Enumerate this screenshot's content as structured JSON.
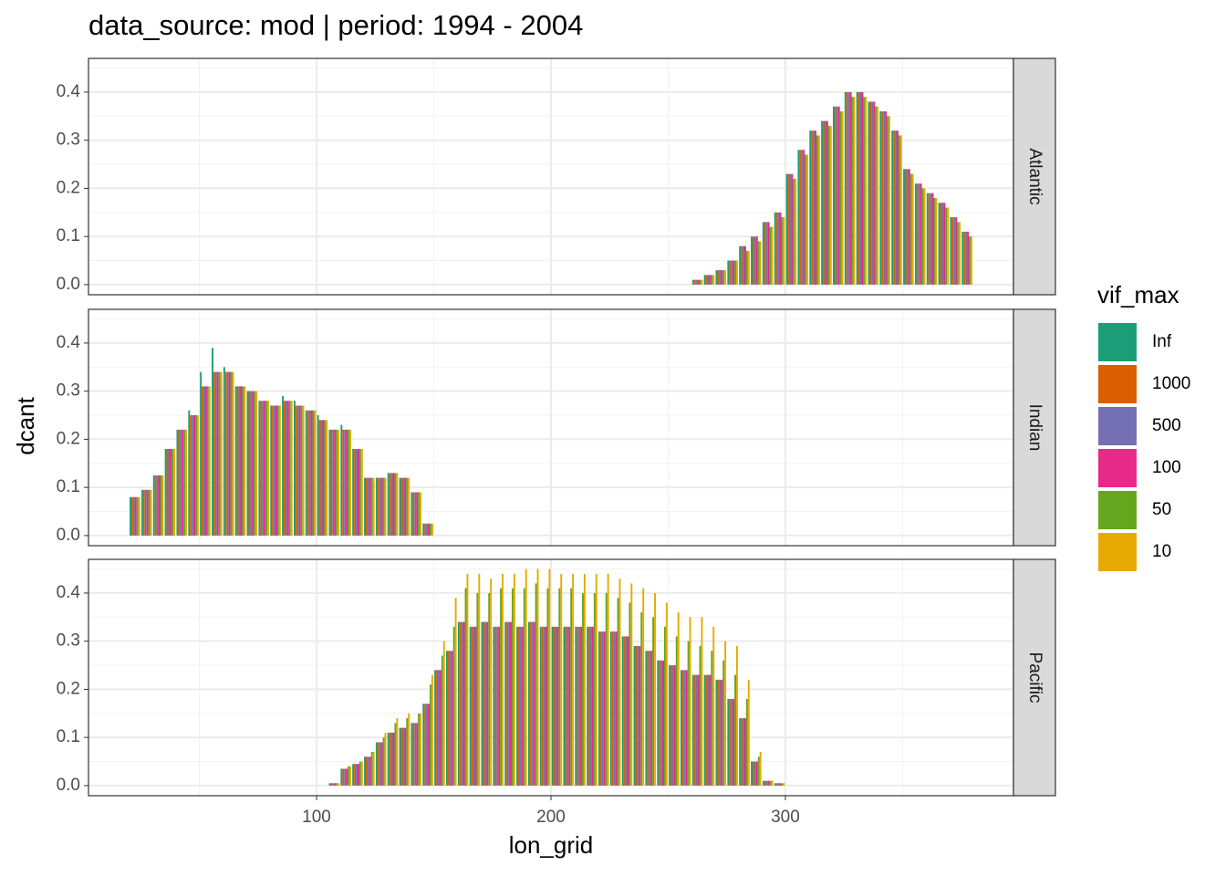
{
  "chart_data": [
    {
      "type": "bar",
      "title": "data_source: mod | period: 1994 - 2004",
      "y_label": "dcant",
      "legend_title": "vif_max",
      "facet": "Atlantic",
      "xlim": [
        2.7,
        397.3
      ],
      "xticks": [
        100,
        200,
        300
      ],
      "ylim": [
        -0.021,
        0.47
      ],
      "yticks": [
        {
          "value": 0,
          "label": "0.0"
        },
        0.1,
        0.2,
        0.3,
        0.4
      ],
      "grid": true,
      "x": [
        262.5,
        267.5,
        272.5,
        277.5,
        282.5,
        287.5,
        292.5,
        297.5,
        302.5,
        307.5,
        312.5,
        317.5,
        322.5,
        327.5,
        332.5,
        337.5,
        342.5,
        347.5,
        352.5,
        357.5,
        362.5,
        367.5,
        372.5,
        377.5
      ],
      "series": [
        {
          "name": "Inf",
          "color": "#1b9e77",
          "values": [
            0.01,
            0.02,
            0.03,
            0.05,
            0.08,
            0.1,
            0.13,
            0.15,
            0.23,
            0.28,
            0.32,
            0.34,
            0.37,
            0.4,
            0.4,
            0.38,
            0.36,
            0.32,
            0.24,
            0.21,
            0.19,
            0.17,
            0.14,
            0.11
          ]
        },
        {
          "name": "1000",
          "color": "#d95f02",
          "values": [
            0.01,
            0.02,
            0.03,
            0.05,
            0.08,
            0.1,
            0.13,
            0.15,
            0.23,
            0.28,
            0.32,
            0.34,
            0.37,
            0.4,
            0.4,
            0.38,
            0.36,
            0.32,
            0.24,
            0.21,
            0.19,
            0.17,
            0.14,
            0.11
          ]
        },
        {
          "name": "500",
          "color": "#7570b3",
          "values": [
            0.01,
            0.02,
            0.03,
            0.05,
            0.08,
            0.1,
            0.13,
            0.15,
            0.23,
            0.28,
            0.32,
            0.34,
            0.37,
            0.4,
            0.4,
            0.38,
            0.36,
            0.32,
            0.24,
            0.21,
            0.19,
            0.17,
            0.14,
            0.11
          ]
        },
        {
          "name": "100",
          "color": "#e7298a",
          "values": [
            0.01,
            0.02,
            0.03,
            0.05,
            0.08,
            0.1,
            0.13,
            0.15,
            0.23,
            0.28,
            0.32,
            0.34,
            0.37,
            0.4,
            0.4,
            0.38,
            0.36,
            0.32,
            0.24,
            0.21,
            0.19,
            0.17,
            0.14,
            0.11
          ]
        },
        {
          "name": "50",
          "color": "#66a61e",
          "values": [
            0.01,
            0.02,
            0.03,
            0.05,
            0.07,
            0.09,
            0.12,
            0.14,
            0.22,
            0.27,
            0.31,
            0.33,
            0.36,
            0.39,
            0.39,
            0.37,
            0.35,
            0.31,
            0.23,
            0.2,
            0.18,
            0.16,
            0.13,
            0.1
          ]
        },
        {
          "name": "10",
          "color": "#e6ab02",
          "values": [
            0.01,
            0.02,
            0.03,
            0.05,
            0.07,
            0.09,
            0.12,
            0.14,
            0.22,
            0.27,
            0.31,
            0.33,
            0.36,
            0.39,
            0.39,
            0.37,
            0.35,
            0.31,
            0.23,
            0.2,
            0.18,
            0.16,
            0.13,
            0.1
          ]
        }
      ]
    },
    {
      "type": "bar",
      "facet": "Indian",
      "xlim": [
        2.7,
        397.3
      ],
      "xticks": [
        100,
        200,
        300
      ],
      "ylim": [
        -0.021,
        0.47
      ],
      "yticks": [
        {
          "value": 0,
          "label": "0.0"
        },
        0.1,
        0.2,
        0.3,
        0.4
      ],
      "grid": true,
      "x": [
        22.5,
        27.5,
        32.5,
        37.5,
        42.5,
        47.5,
        52.5,
        57.5,
        62.5,
        67.5,
        72.5,
        77.5,
        82.5,
        87.5,
        92.5,
        97.5,
        102.5,
        107.5,
        112.5,
        117.5,
        122.5,
        127.5,
        132.5,
        137.5,
        142.5,
        147.5
      ],
      "series": [
        {
          "name": "Inf",
          "color": "#1b9e77",
          "values": [
            0.08,
            0.095,
            0.125,
            0.18,
            0.22,
            0.26,
            0.34,
            0.39,
            0.35,
            0.31,
            0.3,
            0.28,
            0.27,
            0.29,
            0.28,
            0.26,
            0.25,
            0.22,
            0.23,
            0.18,
            0.12,
            0.12,
            0.13,
            0.12,
            0.09,
            0.025
          ]
        },
        {
          "name": "1000",
          "color": "#d95f02",
          "values": [
            0.08,
            0.095,
            0.125,
            0.18,
            0.22,
            0.25,
            0.31,
            0.34,
            0.34,
            0.31,
            0.3,
            0.28,
            0.27,
            0.28,
            0.27,
            0.26,
            0.24,
            0.22,
            0.22,
            0.18,
            0.12,
            0.12,
            0.13,
            0.12,
            0.09,
            0.025
          ]
        },
        {
          "name": "500",
          "color": "#7570b3",
          "values": [
            0.08,
            0.095,
            0.125,
            0.18,
            0.22,
            0.25,
            0.31,
            0.34,
            0.34,
            0.31,
            0.3,
            0.28,
            0.27,
            0.28,
            0.27,
            0.26,
            0.24,
            0.22,
            0.22,
            0.18,
            0.12,
            0.12,
            0.13,
            0.12,
            0.09,
            0.025
          ]
        },
        {
          "name": "100",
          "color": "#e7298a",
          "values": [
            0.08,
            0.095,
            0.125,
            0.18,
            0.22,
            0.25,
            0.31,
            0.34,
            0.34,
            0.31,
            0.3,
            0.28,
            0.27,
            0.28,
            0.27,
            0.26,
            0.24,
            0.22,
            0.22,
            0.18,
            0.12,
            0.12,
            0.13,
            0.12,
            0.09,
            0.025
          ]
        },
        {
          "name": "50",
          "color": "#66a61e",
          "values": [
            0.08,
            0.095,
            0.125,
            0.18,
            0.22,
            0.25,
            0.31,
            0.34,
            0.34,
            0.31,
            0.3,
            0.28,
            0.27,
            0.28,
            0.27,
            0.26,
            0.24,
            0.22,
            0.22,
            0.18,
            0.12,
            0.12,
            0.13,
            0.12,
            0.09,
            0.025
          ]
        },
        {
          "name": "10",
          "color": "#e6ab02",
          "values": [
            0.08,
            0.095,
            0.125,
            0.18,
            0.22,
            0.25,
            0.31,
            0.34,
            0.34,
            0.31,
            0.3,
            0.28,
            0.27,
            0.28,
            0.27,
            0.26,
            0.24,
            0.22,
            0.22,
            0.18,
            0.12,
            0.12,
            0.13,
            0.12,
            0.09,
            0.025
          ]
        }
      ]
    },
    {
      "type": "bar",
      "facet": "Pacific",
      "x_label": "lon_grid",
      "xlim": [
        2.7,
        397.3
      ],
      "xticks": [
        100,
        200,
        300
      ],
      "ylim": [
        -0.021,
        0.47
      ],
      "yticks": [
        {
          "value": 0,
          "label": "0.0"
        },
        0.1,
        0.2,
        0.3,
        0.4
      ],
      "grid": true,
      "x": [
        107.5,
        112.5,
        117.5,
        122.5,
        127.5,
        132.5,
        137.5,
        142.5,
        147.5,
        152.5,
        157.5,
        162.5,
        167.5,
        172.5,
        177.5,
        182.5,
        187.5,
        192.5,
        197.5,
        202.5,
        207.5,
        212.5,
        217.5,
        222.5,
        227.5,
        232.5,
        237.5,
        242.5,
        247.5,
        252.5,
        257.5,
        262.5,
        267.5,
        272.5,
        277.5,
        282.5,
        287.5,
        292.5,
        297.5
      ],
      "series": [
        {
          "name": "Inf",
          "color": "#1b9e77",
          "values": [
            0.005,
            0.035,
            0.045,
            0.06,
            0.09,
            0.11,
            0.12,
            0.13,
            0.17,
            0.24,
            0.28,
            0.34,
            0.33,
            0.34,
            0.33,
            0.34,
            0.33,
            0.34,
            0.33,
            0.33,
            0.33,
            0.33,
            0.33,
            0.32,
            0.32,
            0.31,
            0.29,
            0.28,
            0.26,
            0.25,
            0.24,
            0.23,
            0.23,
            0.22,
            0.18,
            0.14,
            0.05,
            0.01,
            0.005
          ]
        },
        {
          "name": "1000",
          "color": "#d95f02",
          "values": [
            0.005,
            0.035,
            0.045,
            0.06,
            0.09,
            0.11,
            0.12,
            0.13,
            0.17,
            0.24,
            0.28,
            0.34,
            0.33,
            0.34,
            0.33,
            0.34,
            0.33,
            0.34,
            0.33,
            0.33,
            0.33,
            0.33,
            0.33,
            0.32,
            0.32,
            0.31,
            0.29,
            0.28,
            0.26,
            0.25,
            0.24,
            0.23,
            0.23,
            0.22,
            0.18,
            0.14,
            0.05,
            0.01,
            0.005
          ]
        },
        {
          "name": "500",
          "color": "#7570b3",
          "values": [
            0.005,
            0.035,
            0.045,
            0.06,
            0.09,
            0.11,
            0.12,
            0.13,
            0.17,
            0.24,
            0.28,
            0.34,
            0.33,
            0.34,
            0.33,
            0.34,
            0.33,
            0.34,
            0.33,
            0.33,
            0.33,
            0.33,
            0.33,
            0.32,
            0.32,
            0.31,
            0.29,
            0.28,
            0.26,
            0.25,
            0.24,
            0.23,
            0.23,
            0.22,
            0.18,
            0.14,
            0.05,
            0.01,
            0.005
          ]
        },
        {
          "name": "100",
          "color": "#e7298a",
          "values": [
            0.005,
            0.035,
            0.045,
            0.06,
            0.09,
            0.11,
            0.12,
            0.13,
            0.17,
            0.24,
            0.28,
            0.34,
            0.33,
            0.34,
            0.33,
            0.34,
            0.33,
            0.34,
            0.33,
            0.33,
            0.33,
            0.33,
            0.33,
            0.32,
            0.32,
            0.31,
            0.29,
            0.28,
            0.26,
            0.25,
            0.24,
            0.23,
            0.23,
            0.22,
            0.18,
            0.14,
            0.05,
            0.01,
            0.005
          ]
        },
        {
          "name": "50",
          "color": "#66a61e",
          "values": [
            0.005,
            0.04,
            0.05,
            0.07,
            0.1,
            0.13,
            0.14,
            0.15,
            0.21,
            0.27,
            0.33,
            0.41,
            0.4,
            0.4,
            0.41,
            0.41,
            0.41,
            0.42,
            0.41,
            0.41,
            0.41,
            0.4,
            0.4,
            0.4,
            0.39,
            0.38,
            0.36,
            0.35,
            0.33,
            0.31,
            0.3,
            0.29,
            0.28,
            0.26,
            0.23,
            0.18,
            0.06,
            0.01,
            0.005
          ]
        },
        {
          "name": "10",
          "color": "#e6ab02",
          "values": [
            0.005,
            0.04,
            0.05,
            0.07,
            0.11,
            0.14,
            0.15,
            0.15,
            0.23,
            0.3,
            0.39,
            0.44,
            0.44,
            0.43,
            0.44,
            0.44,
            0.45,
            0.45,
            0.45,
            0.44,
            0.44,
            0.44,
            0.44,
            0.44,
            0.43,
            0.42,
            0.41,
            0.4,
            0.38,
            0.36,
            0.35,
            0.35,
            0.33,
            0.3,
            0.29,
            0.22,
            0.07,
            0.01,
            0.005
          ]
        }
      ]
    }
  ]
}
